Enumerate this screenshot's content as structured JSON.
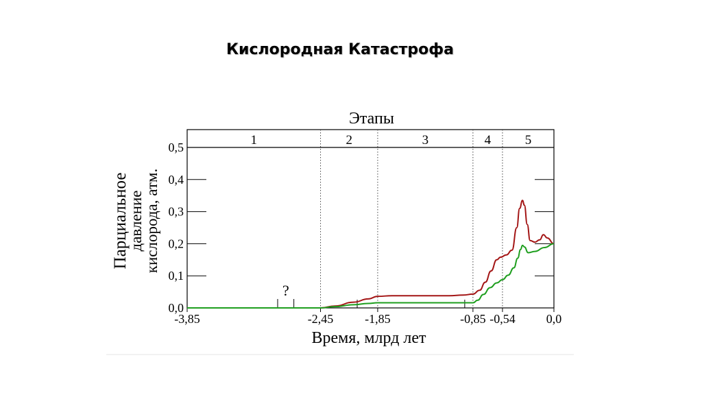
{
  "slide": {
    "title": "Кислородная Катастрофа"
  },
  "chart_data": {
    "type": "line",
    "title": "",
    "stages_title": "Этапы",
    "ylabel_line1": "Парциальное",
    "ylabel_line2": "давление",
    "ylabel_line3": "кислорода, атм.",
    "xlabel": "Время, млрд лет",
    "xlim": [
      -3.85,
      0.0
    ],
    "ylim": [
      0.0,
      0.5
    ],
    "ytick_labels": [
      "0,0",
      "0,1",
      "0,2",
      "0,3",
      "0,4",
      "0,5"
    ],
    "ytick_values": [
      0.0,
      0.1,
      0.2,
      0.3,
      0.4,
      0.5
    ],
    "xtick_labels": [
      "-3,85",
      "-2,45",
      "-1,85",
      "-0,85",
      "-0,54",
      "0,0"
    ],
    "xtick_values": [
      -3.85,
      -2.45,
      -1.85,
      -0.85,
      -0.54,
      0.0
    ],
    "stage_boundaries": [
      -2.45,
      -1.85,
      -0.85,
      -0.54
    ],
    "stages": [
      {
        "label": "1",
        "from": -3.85,
        "to": -2.45
      },
      {
        "label": "2",
        "from": -2.45,
        "to": -1.85
      },
      {
        "label": "3",
        "from": -1.85,
        "to": -0.85
      },
      {
        "label": "4",
        "from": -0.85,
        "to": -0.54
      },
      {
        "label": "5",
        "from": -0.54,
        "to": 0.0
      }
    ],
    "uncertainty_mark": {
      "label": "?",
      "from": -2.9,
      "to": -2.73
    },
    "series": [
      {
        "color": "#a31515",
        "points": [
          [
            -3.85,
            0.0
          ],
          [
            -2.45,
            0.0
          ],
          [
            -2.3,
            0.006
          ],
          [
            -2.1,
            0.018
          ],
          [
            -1.95,
            0.028
          ],
          [
            -1.85,
            0.036
          ],
          [
            -1.7,
            0.038
          ],
          [
            -1.4,
            0.038
          ],
          [
            -1.1,
            0.038
          ],
          [
            -0.95,
            0.04
          ],
          [
            -0.85,
            0.043
          ],
          [
            -0.78,
            0.055
          ],
          [
            -0.72,
            0.08
          ],
          [
            -0.66,
            0.115
          ],
          [
            -0.6,
            0.15
          ],
          [
            -0.56,
            0.158
          ],
          [
            -0.5,
            0.165
          ],
          [
            -0.44,
            0.18
          ],
          [
            -0.39,
            0.25
          ],
          [
            -0.36,
            0.31
          ],
          [
            -0.33,
            0.335
          ],
          [
            -0.31,
            0.32
          ],
          [
            -0.28,
            0.26
          ],
          [
            -0.25,
            0.21
          ],
          [
            -0.2,
            0.205
          ],
          [
            -0.15,
            0.212
          ],
          [
            -0.11,
            0.228
          ],
          [
            -0.07,
            0.218
          ],
          [
            0.0,
            0.2
          ]
        ]
      },
      {
        "color": "#1e9e1e",
        "points": [
          [
            -3.85,
            0.0
          ],
          [
            -2.45,
            0.0
          ],
          [
            -2.3,
            0.004
          ],
          [
            -2.1,
            0.01
          ],
          [
            -1.95,
            0.014
          ],
          [
            -1.85,
            0.016
          ],
          [
            -1.5,
            0.016
          ],
          [
            -1.2,
            0.016
          ],
          [
            -0.85,
            0.016
          ],
          [
            -0.8,
            0.024
          ],
          [
            -0.74,
            0.042
          ],
          [
            -0.67,
            0.063
          ],
          [
            -0.6,
            0.078
          ],
          [
            -0.54,
            0.088
          ],
          [
            -0.48,
            0.102
          ],
          [
            -0.42,
            0.125
          ],
          [
            -0.38,
            0.155
          ],
          [
            -0.35,
            0.182
          ],
          [
            -0.33,
            0.195
          ],
          [
            -0.31,
            0.19
          ],
          [
            -0.27,
            0.172
          ],
          [
            -0.2,
            0.176
          ],
          [
            -0.1,
            0.188
          ],
          [
            0.0,
            0.2
          ]
        ]
      }
    ]
  }
}
